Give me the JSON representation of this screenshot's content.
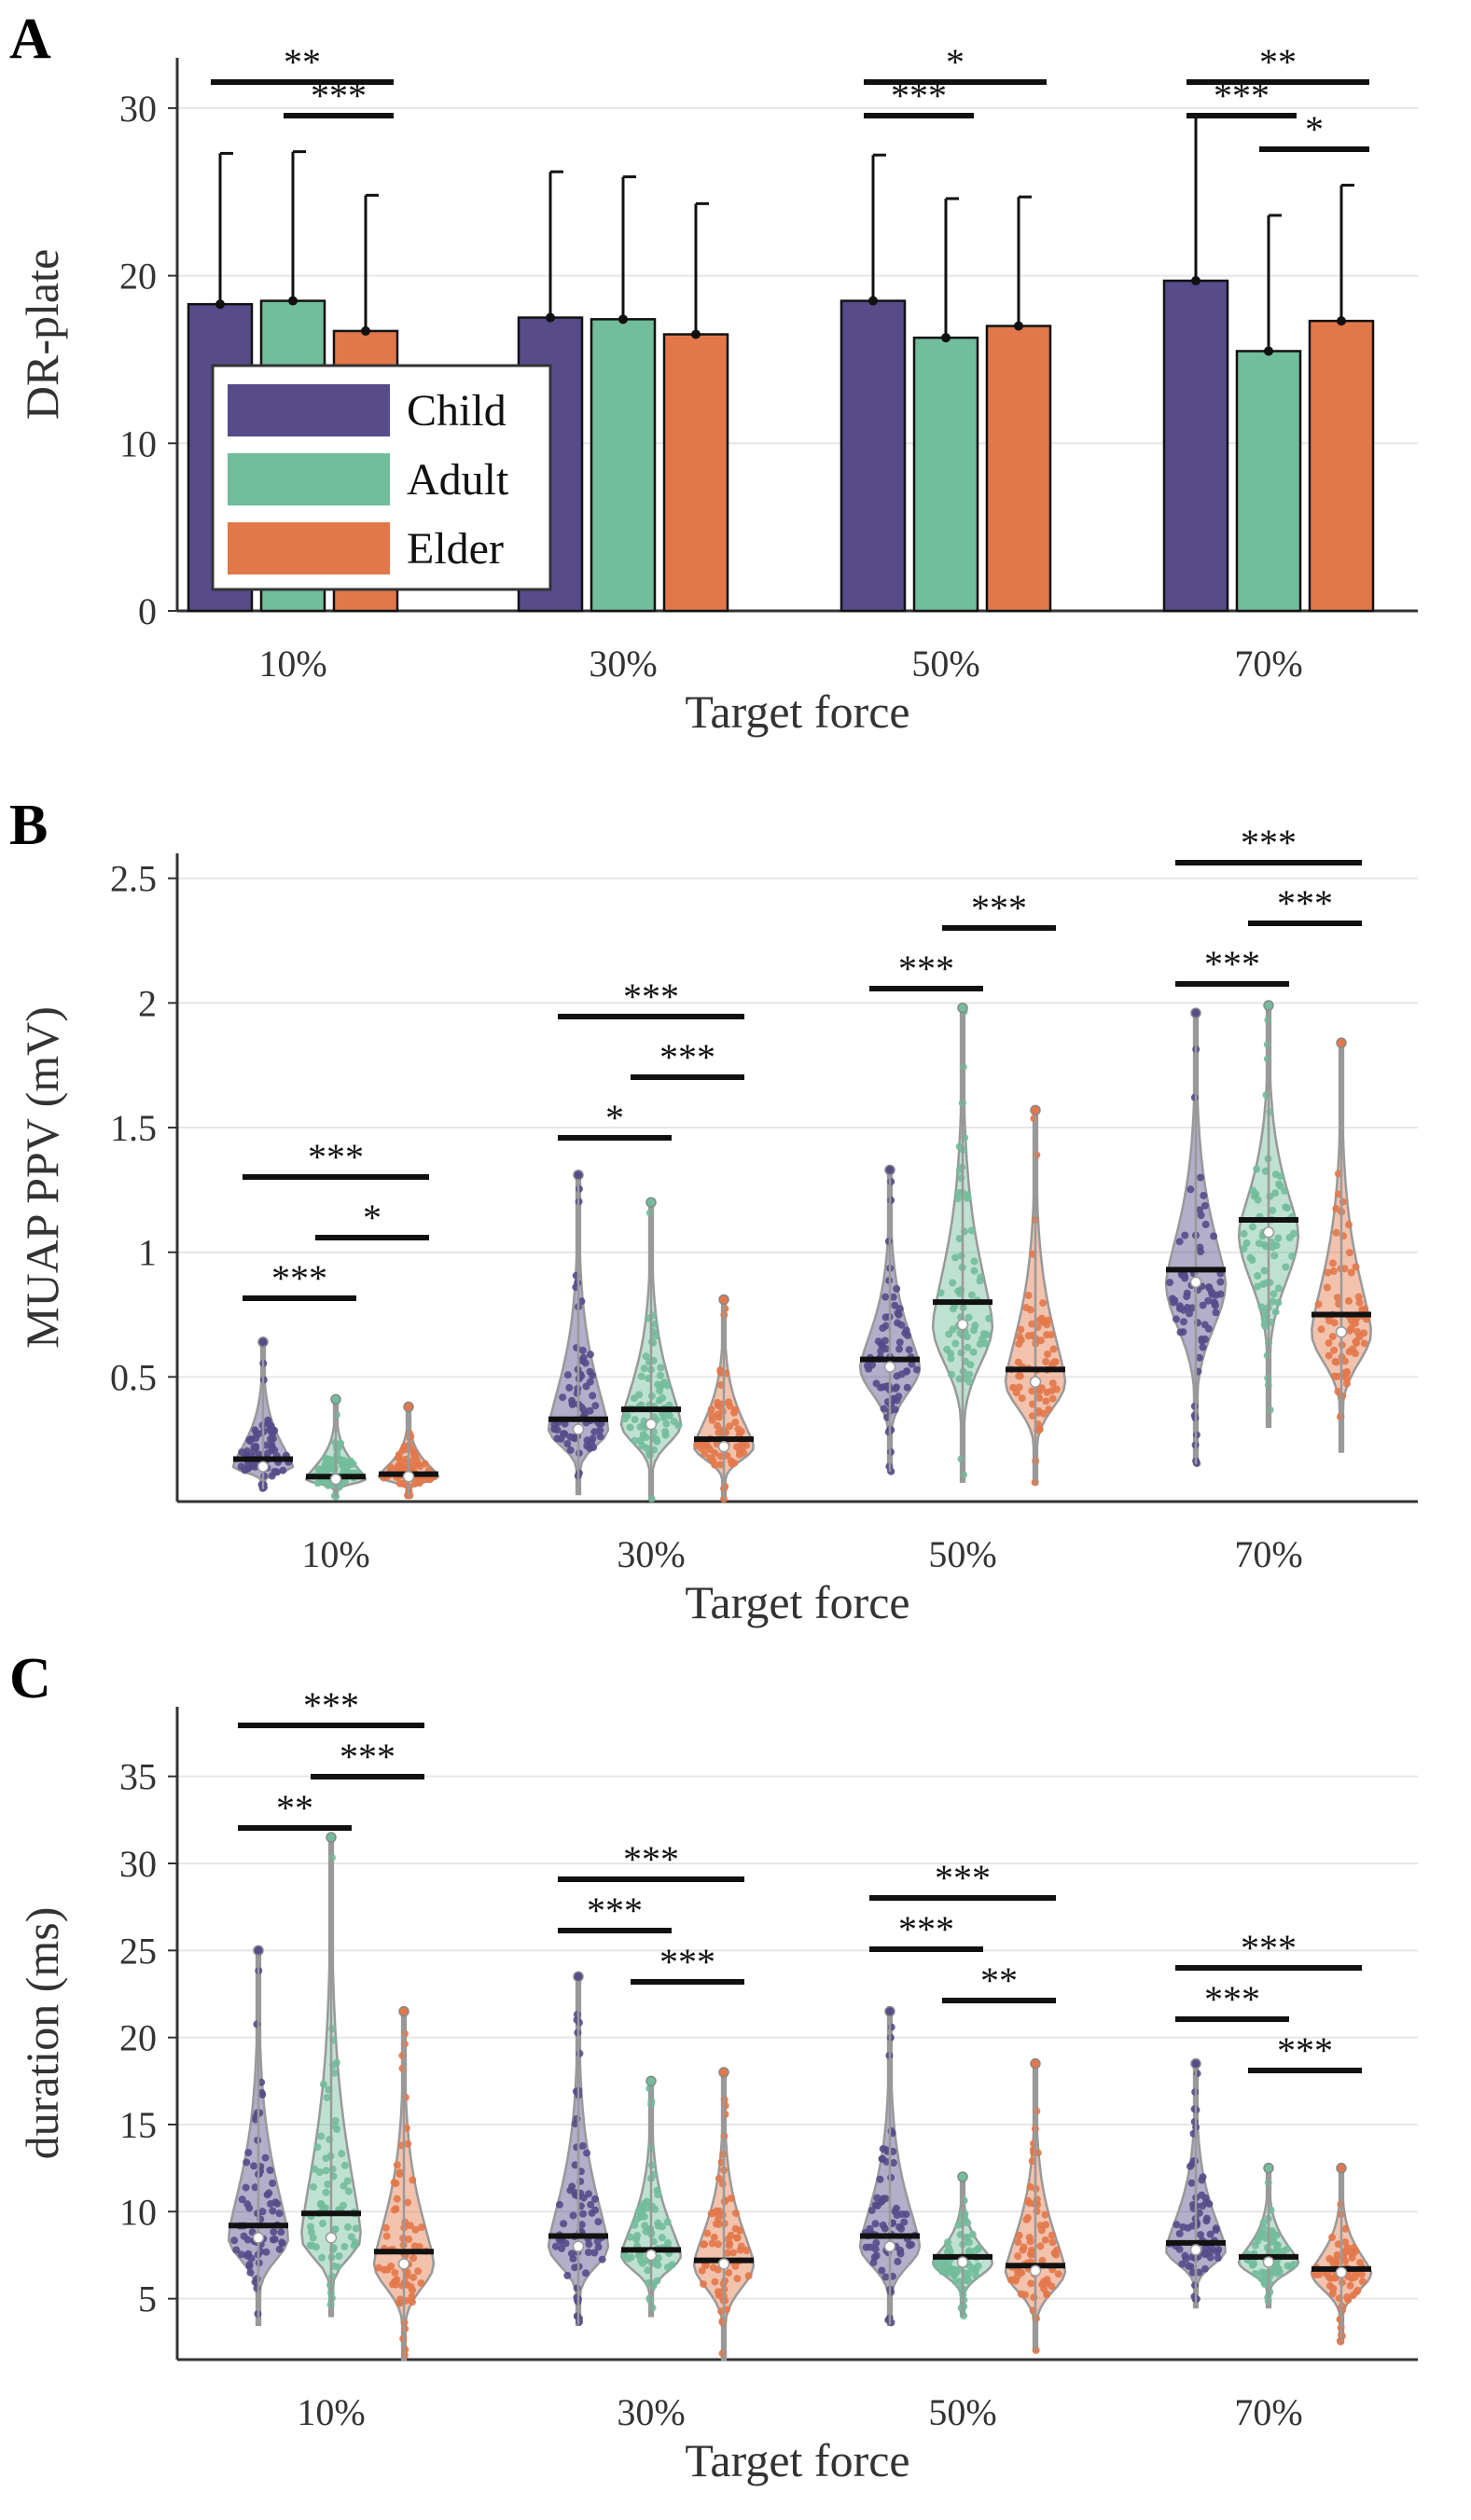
{
  "colors": {
    "Child": "#574b8a",
    "Adult": "#72bd9b",
    "Elder": "#e2784a",
    "axis": "#333333",
    "grid": "#e6e6e6",
    "mean_line": "#111111"
  },
  "chart_data": [
    {
      "type": "bar",
      "panel": "A",
      "title": "",
      "xlabel": "Target force",
      "ylabel": "DR-plate",
      "ylim": [
        0,
        33
      ],
      "yticks": [
        0,
        10,
        20,
        30
      ],
      "categories": [
        "10%",
        "30%",
        "50%",
        "70%"
      ],
      "series": [
        {
          "name": "Child",
          "values": [
            18.3,
            17.5,
            18.5,
            19.7
          ],
          "error": [
            9.0,
            8.7,
            8.7,
            9.8
          ]
        },
        {
          "name": "Adult",
          "values": [
            18.5,
            17.4,
            16.3,
            15.5
          ],
          "error": [
            8.9,
            8.5,
            8.3,
            8.1
          ]
        },
        {
          "name": "Elder",
          "values": [
            16.7,
            16.5,
            17.0,
            17.3
          ],
          "error": [
            8.1,
            7.8,
            7.7,
            8.1
          ]
        }
      ],
      "legend": [
        "Child",
        "Adult",
        "Elder"
      ],
      "legend_position": "lower-left",
      "significance": [
        {
          "category": 0,
          "from": 0,
          "to": 2,
          "label": "**",
          "level": 0
        },
        {
          "category": 0,
          "from": 1,
          "to": 2,
          "label": "***",
          "level": 1
        },
        {
          "category": 2,
          "from": 0,
          "to": 2,
          "label": "*",
          "level": 0
        },
        {
          "category": 2,
          "from": 0,
          "to": 1,
          "label": "***",
          "level": 1
        },
        {
          "category": 3,
          "from": 0,
          "to": 2,
          "label": "**",
          "level": 0
        },
        {
          "category": 3,
          "from": 0,
          "to": 1,
          "label": "***",
          "level": 1
        },
        {
          "category": 3,
          "from": 1,
          "to": 2,
          "label": "*",
          "level": 2
        }
      ]
    },
    {
      "type": "violin",
      "panel": "B",
      "title": "",
      "xlabel": "Target force",
      "ylabel": "MUAP PPV (mV)",
      "ylim": [
        0,
        2.6
      ],
      "yticks": [
        0.5,
        1,
        1.5,
        2,
        2.5
      ],
      "ytick_labels": [
        "0.5",
        "1",
        "1.5",
        "2",
        "2.5"
      ],
      "categories": [
        "10%",
        "30%",
        "50%",
        "70%"
      ],
      "series": [
        {
          "name": "Child",
          "mean": [
            0.17,
            0.33,
            0.57,
            0.93
          ],
          "median": [
            0.14,
            0.29,
            0.54,
            0.88
          ],
          "min": [
            0.05,
            0.03,
            0.12,
            0.15
          ],
          "max": [
            0.64,
            1.31,
            1.33,
            1.96
          ]
        },
        {
          "name": "Adult",
          "mean": [
            0.1,
            0.37,
            0.8,
            1.13
          ],
          "median": [
            0.09,
            0.31,
            0.71,
            1.08
          ],
          "min": [
            0.02,
            0.01,
            0.08,
            0.3
          ],
          "max": [
            0.41,
            1.2,
            1.98,
            1.99
          ]
        },
        {
          "name": "Elder",
          "mean": [
            0.11,
            0.25,
            0.53,
            0.75
          ],
          "median": [
            0.1,
            0.22,
            0.48,
            0.68
          ],
          "min": [
            0.02,
            0.01,
            0.07,
            0.2
          ],
          "max": [
            0.38,
            0.81,
            1.57,
            1.84
          ]
        }
      ],
      "significance": [
        {
          "category": 0,
          "from": 0,
          "to": 2,
          "label": "***",
          "level": 0
        },
        {
          "category": 0,
          "from": 1,
          "to": 2,
          "label": "*",
          "level": 1
        },
        {
          "category": 0,
          "from": 0,
          "to": 1,
          "label": "***",
          "level": 2
        },
        {
          "category": 1,
          "from": 0,
          "to": 2,
          "label": "***",
          "level": 0
        },
        {
          "category": 1,
          "from": 1,
          "to": 2,
          "label": "***",
          "level": 1
        },
        {
          "category": 1,
          "from": 0,
          "to": 1,
          "label": "*",
          "level": 2
        },
        {
          "category": 2,
          "from": 1,
          "to": 2,
          "label": "***",
          "level": 0
        },
        {
          "category": 2,
          "from": 0,
          "to": 1,
          "label": "***",
          "level": 1
        },
        {
          "category": 3,
          "from": 0,
          "to": 2,
          "label": "***",
          "level": 0
        },
        {
          "category": 3,
          "from": 1,
          "to": 2,
          "label": "***",
          "level": 1
        },
        {
          "category": 3,
          "from": 0,
          "to": 1,
          "label": "***",
          "level": 2
        }
      ]
    },
    {
      "type": "violin",
      "panel": "C",
      "title": "",
      "xlabel": "Target force",
      "ylabel": "duration (ms)",
      "ylim": [
        1.5,
        39
      ],
      "yticks": [
        5,
        10,
        15,
        20,
        25,
        30,
        35
      ],
      "ytick_labels": [
        "5",
        "10",
        "15",
        "20",
        "25",
        "30",
        "35"
      ],
      "categories": [
        "10%",
        "30%",
        "50%",
        "70%"
      ],
      "series": [
        {
          "name": "Child",
          "mean": [
            9.2,
            8.6,
            8.6,
            8.2
          ],
          "median": [
            8.5,
            8.0,
            8.0,
            7.8
          ],
          "min": [
            3.5,
            3.5,
            3.5,
            4.5
          ],
          "max": [
            25.0,
            23.5,
            21.5,
            18.5
          ]
        },
        {
          "name": "Adult",
          "mean": [
            9.9,
            7.8,
            7.4,
            7.4
          ],
          "median": [
            8.5,
            7.5,
            7.1,
            7.1
          ],
          "min": [
            4.0,
            4.0,
            4.0,
            4.5
          ],
          "max": [
            31.5,
            17.5,
            12.0,
            12.5
          ]
        },
        {
          "name": "Elder",
          "mean": [
            7.7,
            7.2,
            6.9,
            6.7
          ],
          "median": [
            7.0,
            7.0,
            6.6,
            6.5
          ],
          "min": [
            1.5,
            1.5,
            2.0,
            2.5
          ],
          "max": [
            21.5,
            18.0,
            18.5,
            12.5
          ]
        }
      ],
      "significance": [
        {
          "category": 0,
          "from": 0,
          "to": 2,
          "label": "***",
          "level": 0
        },
        {
          "category": 0,
          "from": 1,
          "to": 2,
          "label": "***",
          "level": 1
        },
        {
          "category": 0,
          "from": 0,
          "to": 1,
          "label": "**",
          "level": 2
        },
        {
          "category": 1,
          "from": 0,
          "to": 2,
          "label": "***",
          "level": 0
        },
        {
          "category": 1,
          "from": 0,
          "to": 1,
          "label": "***",
          "level": 1
        },
        {
          "category": 1,
          "from": 1,
          "to": 2,
          "label": "***",
          "level": 2
        },
        {
          "category": 2,
          "from": 0,
          "to": 2,
          "label": "***",
          "level": 0
        },
        {
          "category": 2,
          "from": 0,
          "to": 1,
          "label": "***",
          "level": 1
        },
        {
          "category": 2,
          "from": 1,
          "to": 2,
          "label": "**",
          "level": 2
        },
        {
          "category": 3,
          "from": 0,
          "to": 2,
          "label": "***",
          "level": 0
        },
        {
          "category": 3,
          "from": 0,
          "to": 1,
          "label": "***",
          "level": 1
        },
        {
          "category": 3,
          "from": 1,
          "to": 2,
          "label": "***",
          "level": 2
        }
      ]
    }
  ]
}
